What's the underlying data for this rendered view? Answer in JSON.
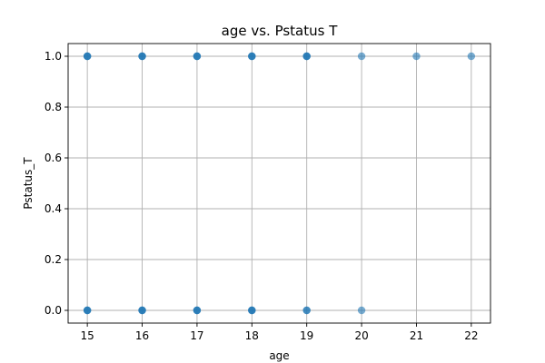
{
  "chart_data": {
    "type": "scatter",
    "title": "age vs. Pstatus T",
    "xlabel": "age",
    "ylabel": "Pstatus_T",
    "xlim": [
      14.65,
      22.35
    ],
    "ylim": [
      -0.05,
      1.05
    ],
    "x_ticks": [
      15,
      16,
      17,
      18,
      19,
      20,
      21,
      22
    ],
    "y_ticks": [
      0.0,
      0.2,
      0.4,
      0.6,
      0.8,
      1.0
    ],
    "y_tick_labels": [
      "0.0",
      "0.2",
      "0.4",
      "0.6",
      "0.8",
      "1.0"
    ],
    "grid": true,
    "marker_color": "#1f77b4",
    "marker_alpha": 0.6,
    "points": [
      {
        "x": 15,
        "y": 1
      },
      {
        "x": 15,
        "y": 1
      },
      {
        "x": 15,
        "y": 1
      },
      {
        "x": 16,
        "y": 1
      },
      {
        "x": 16,
        "y": 1
      },
      {
        "x": 16,
        "y": 1
      },
      {
        "x": 17,
        "y": 1
      },
      {
        "x": 17,
        "y": 1
      },
      {
        "x": 17,
        "y": 1
      },
      {
        "x": 18,
        "y": 1
      },
      {
        "x": 18,
        "y": 1
      },
      {
        "x": 18,
        "y": 1
      },
      {
        "x": 19,
        "y": 1
      },
      {
        "x": 19,
        "y": 1
      },
      {
        "x": 19,
        "y": 1
      },
      {
        "x": 20,
        "y": 1
      },
      {
        "x": 21,
        "y": 1
      },
      {
        "x": 22,
        "y": 1
      },
      {
        "x": 15,
        "y": 0
      },
      {
        "x": 15,
        "y": 0
      },
      {
        "x": 15,
        "y": 0
      },
      {
        "x": 16,
        "y": 0
      },
      {
        "x": 16,
        "y": 0
      },
      {
        "x": 16,
        "y": 0
      },
      {
        "x": 17,
        "y": 0
      },
      {
        "x": 17,
        "y": 0
      },
      {
        "x": 17,
        "y": 0
      },
      {
        "x": 18,
        "y": 0
      },
      {
        "x": 18,
        "y": 0
      },
      {
        "x": 18,
        "y": 0
      },
      {
        "x": 19,
        "y": 0
      },
      {
        "x": 19,
        "y": 0
      },
      {
        "x": 20,
        "y": 0
      }
    ]
  }
}
